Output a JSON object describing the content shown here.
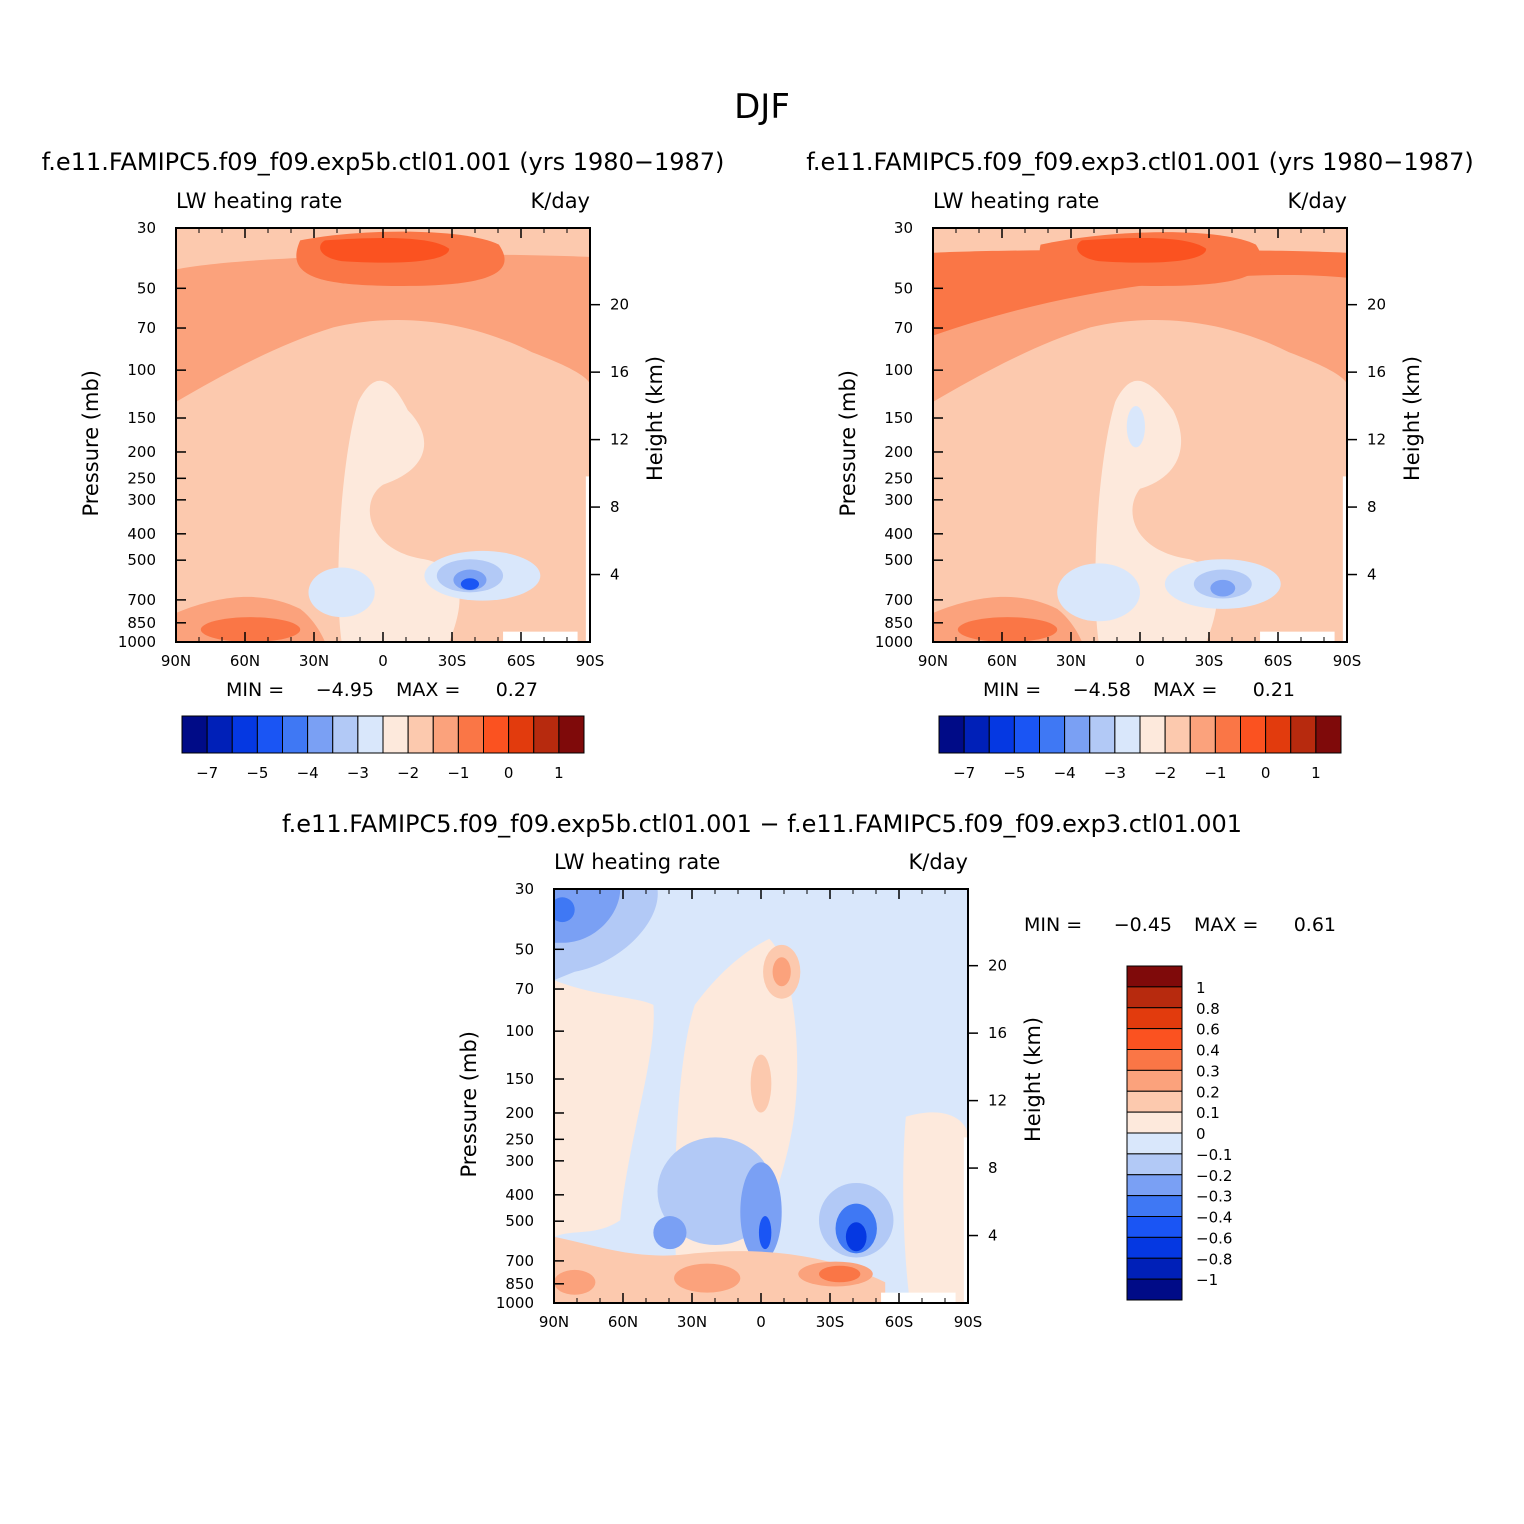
{
  "figure": {
    "title": "DJF",
    "colors": {
      "neg": [
        "#000b87",
        "#0020b8",
        "#0538e2",
        "#1a55f4",
        "#3f78f4",
        "#7aa0f4",
        "#b2c9f6",
        "#d9e7fb"
      ],
      "pos": [
        "#fde9dc",
        "#fcc9ae",
        "#fba27c",
        "#fa7646",
        "#fb5220",
        "#e23b0d",
        "#b72a0e",
        "#7f0a0a"
      ]
    }
  },
  "chart_data": [
    {
      "type": "heatmap",
      "title": "f.e11.FAMIPC5.f09_f09.exp5b.ctl01.001 (yrs 1980−1987)",
      "left_label": "LW heating rate",
      "right_label": "K/day",
      "ylabel": "Pressure (mb)",
      "ylabel_right": "Height (km)",
      "x_ticks": [
        "90N",
        "60N",
        "30N",
        "0",
        "30S",
        "60S",
        "90S"
      ],
      "x_range": [
        90,
        -90
      ],
      "y_ticks": [
        "30",
        "50",
        "70",
        "100",
        "150",
        "200",
        "250",
        "300",
        "400",
        "500",
        "700",
        "850",
        "1000"
      ],
      "y_tick_values": [
        30,
        50,
        70,
        100,
        150,
        200,
        250,
        300,
        400,
        500,
        700,
        850,
        1000
      ],
      "y_range": [
        30,
        1000
      ],
      "y_scale": "log",
      "height_ticks": [
        "20",
        "16",
        "12",
        "8",
        "4"
      ],
      "height_values_km": [
        20,
        16,
        12,
        8,
        4
      ],
      "min_label": "MIN =",
      "min_value": "−4.95",
      "max_label": "MAX =",
      "max_value": "0.27",
      "levels": [
        -7,
        -6,
        -5,
        -4.5,
        -4,
        -3.5,
        -3,
        -2.5,
        -2,
        -1.5,
        -1,
        -0.5,
        0,
        0.5,
        1
      ],
      "colorbar_labels": [
        "−7",
        "−5",
        "−4",
        "−3",
        "−2",
        "−1",
        "0",
        "1"
      ],
      "colorbar_orientation": "horizontal",
      "min": -4.95,
      "max": 0.27
    },
    {
      "type": "heatmap",
      "title": "f.e11.FAMIPC5.f09_f09.exp3.ctl01.001 (yrs 1980−1987)",
      "left_label": "LW heating rate",
      "right_label": "K/day",
      "ylabel": "Pressure (mb)",
      "ylabel_right": "Height (km)",
      "x_ticks": [
        "90N",
        "60N",
        "30N",
        "0",
        "30S",
        "60S",
        "90S"
      ],
      "x_range": [
        90,
        -90
      ],
      "y_ticks": [
        "30",
        "50",
        "70",
        "100",
        "150",
        "200",
        "250",
        "300",
        "400",
        "500",
        "700",
        "850",
        "1000"
      ],
      "y_tick_values": [
        30,
        50,
        70,
        100,
        150,
        200,
        250,
        300,
        400,
        500,
        700,
        850,
        1000
      ],
      "y_range": [
        30,
        1000
      ],
      "y_scale": "log",
      "height_ticks": [
        "20",
        "16",
        "12",
        "8",
        "4"
      ],
      "height_values_km": [
        20,
        16,
        12,
        8,
        4
      ],
      "min_label": "MIN =",
      "min_value": "−4.58",
      "max_label": "MAX =",
      "max_value": "0.21",
      "levels": [
        -7,
        -6,
        -5,
        -4.5,
        -4,
        -3.5,
        -3,
        -2.5,
        -2,
        -1.5,
        -1,
        -0.5,
        0,
        0.5,
        1
      ],
      "colorbar_labels": [
        "−7",
        "−5",
        "−4",
        "−3",
        "−2",
        "−1",
        "0",
        "1"
      ],
      "colorbar_orientation": "horizontal",
      "min": -4.58,
      "max": 0.21
    },
    {
      "type": "heatmap",
      "title": "f.e11.FAMIPC5.f09_f09.exp5b.ctl01.001 − f.e11.FAMIPC5.f09_f09.exp3.ctl01.001",
      "left_label": "LW heating rate",
      "right_label": "K/day",
      "ylabel": "Pressure (mb)",
      "ylabel_right": "Height (km)",
      "x_ticks": [
        "90N",
        "60N",
        "30N",
        "0",
        "30S",
        "60S",
        "90S"
      ],
      "x_range": [
        90,
        -90
      ],
      "y_ticks": [
        "30",
        "50",
        "70",
        "100",
        "150",
        "200",
        "250",
        "300",
        "400",
        "500",
        "700",
        "850",
        "1000"
      ],
      "y_tick_values": [
        30,
        50,
        70,
        100,
        150,
        200,
        250,
        300,
        400,
        500,
        700,
        850,
        1000
      ],
      "y_range": [
        30,
        1000
      ],
      "y_scale": "log",
      "height_ticks": [
        "20",
        "16",
        "12",
        "8",
        "4"
      ],
      "height_values_km": [
        20,
        16,
        12,
        8,
        4
      ],
      "min_label": "MIN =",
      "min_value": "−0.45",
      "max_label": "MAX =",
      "max_value": "0.61",
      "levels": [
        -1,
        -0.8,
        -0.6,
        -0.4,
        -0.3,
        -0.2,
        -0.1,
        0,
        0.1,
        0.2,
        0.3,
        0.4,
        0.6,
        0.8,
        1
      ],
      "colorbar_labels": [
        "1",
        "0.8",
        "0.6",
        "0.4",
        "0.3",
        "0.2",
        "0.1",
        "0",
        "−0.1",
        "−0.2",
        "−0.3",
        "−0.4",
        "−0.6",
        "−0.8",
        "−1"
      ],
      "colorbar_orientation": "vertical",
      "min": -0.45,
      "max": 0.61
    }
  ]
}
